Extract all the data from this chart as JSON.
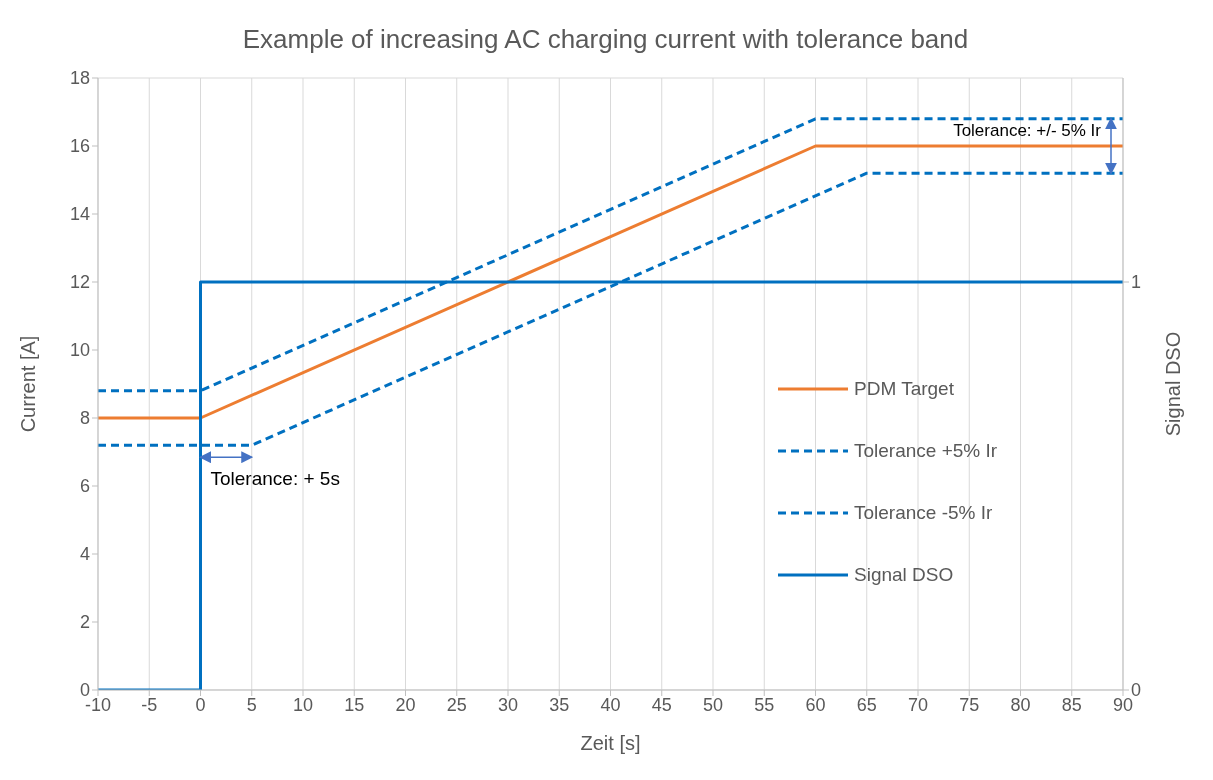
{
  "chart_data": {
    "type": "line",
    "title": "Example of increasing AC charging current with tolerance band",
    "xlabel": "Zeit [s]",
    "ylabel": "Current [A]",
    "y2label": "Signal DSO",
    "xlim": [
      -10,
      90
    ],
    "xticks": [
      -10,
      -5,
      0,
      5,
      10,
      15,
      20,
      25,
      30,
      35,
      40,
      45,
      50,
      55,
      60,
      65,
      70,
      75,
      80,
      85,
      90
    ],
    "ylim": [
      0,
      18
    ],
    "yticks": [
      0,
      2,
      4,
      6,
      8,
      10,
      12,
      14,
      16,
      18
    ],
    "y2lim": [
      0,
      1.5
    ],
    "y2ticks": [
      0,
      1
    ],
    "grid": true,
    "legend": "right",
    "marker": "none",
    "series": [
      {
        "name": "PDM Target",
        "color": "#ed7d31",
        "line_style": "solid",
        "x": [
          -10,
          0,
          60,
          90
        ],
        "values": [
          8,
          8,
          16,
          16
        ]
      },
      {
        "name": "Tolerance +5% Ir",
        "color": "#0070c0",
        "line_style": "dashed",
        "x": [
          -10,
          0,
          60,
          90
        ],
        "values": [
          8.8,
          8.8,
          16.8,
          16.8
        ]
      },
      {
        "name": "Tolerance -5% Ir",
        "color": "#0070c0",
        "line_style": "dashed",
        "x": [
          -10,
          5,
          65,
          90
        ],
        "values": [
          7.2,
          7.2,
          15.2,
          15.2
        ]
      },
      {
        "name": "Signal DSO",
        "color": "#0070c0",
        "line_style": "solid",
        "axis": "y2",
        "x": [
          -10,
          0,
          0,
          90
        ],
        "values": [
          0,
          0,
          1,
          1
        ]
      }
    ],
    "annotations": [
      "Tolerance: + 5s",
      "Tolerance: +/- 5% Ir"
    ]
  }
}
